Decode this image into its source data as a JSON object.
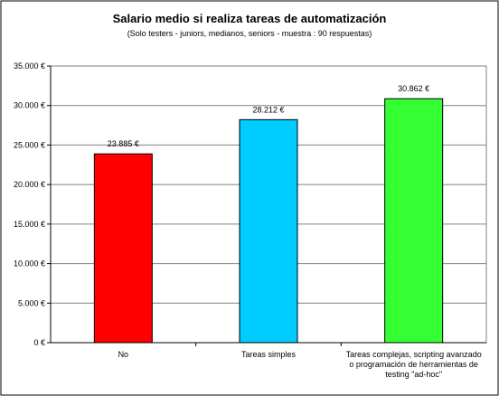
{
  "chart_data": {
    "type": "bar",
    "title": "Salario medio si realiza tareas de automatización",
    "subtitle": "(Solo testers - juniors, medianos, seniors - muestra : 90 respuestas)",
    "categories": [
      [
        "No"
      ],
      [
        "Tareas simples"
      ],
      [
        "Tareas complejas, scripting avanzado",
        "o programación de herramientas de",
        "testing \"ad-hoc\""
      ]
    ],
    "values": [
      23885,
      28212,
      30862
    ],
    "value_labels": [
      "23.885 €",
      "28.212 €",
      "30.862 €"
    ],
    "bar_colors": [
      "#ff0000",
      "#00ccff",
      "#33ff33"
    ],
    "ylim": [
      0,
      35000
    ],
    "yticks": [
      0,
      5000,
      10000,
      15000,
      20000,
      25000,
      30000,
      35000
    ],
    "ytick_labels": [
      "0 €",
      "5.000 €",
      "10.000 €",
      "15.000 €",
      "20.000 €",
      "25.000 €",
      "30.000 €",
      "35.000 €"
    ],
    "grid": true,
    "legend": "none",
    "xlabel": "",
    "ylabel": ""
  }
}
